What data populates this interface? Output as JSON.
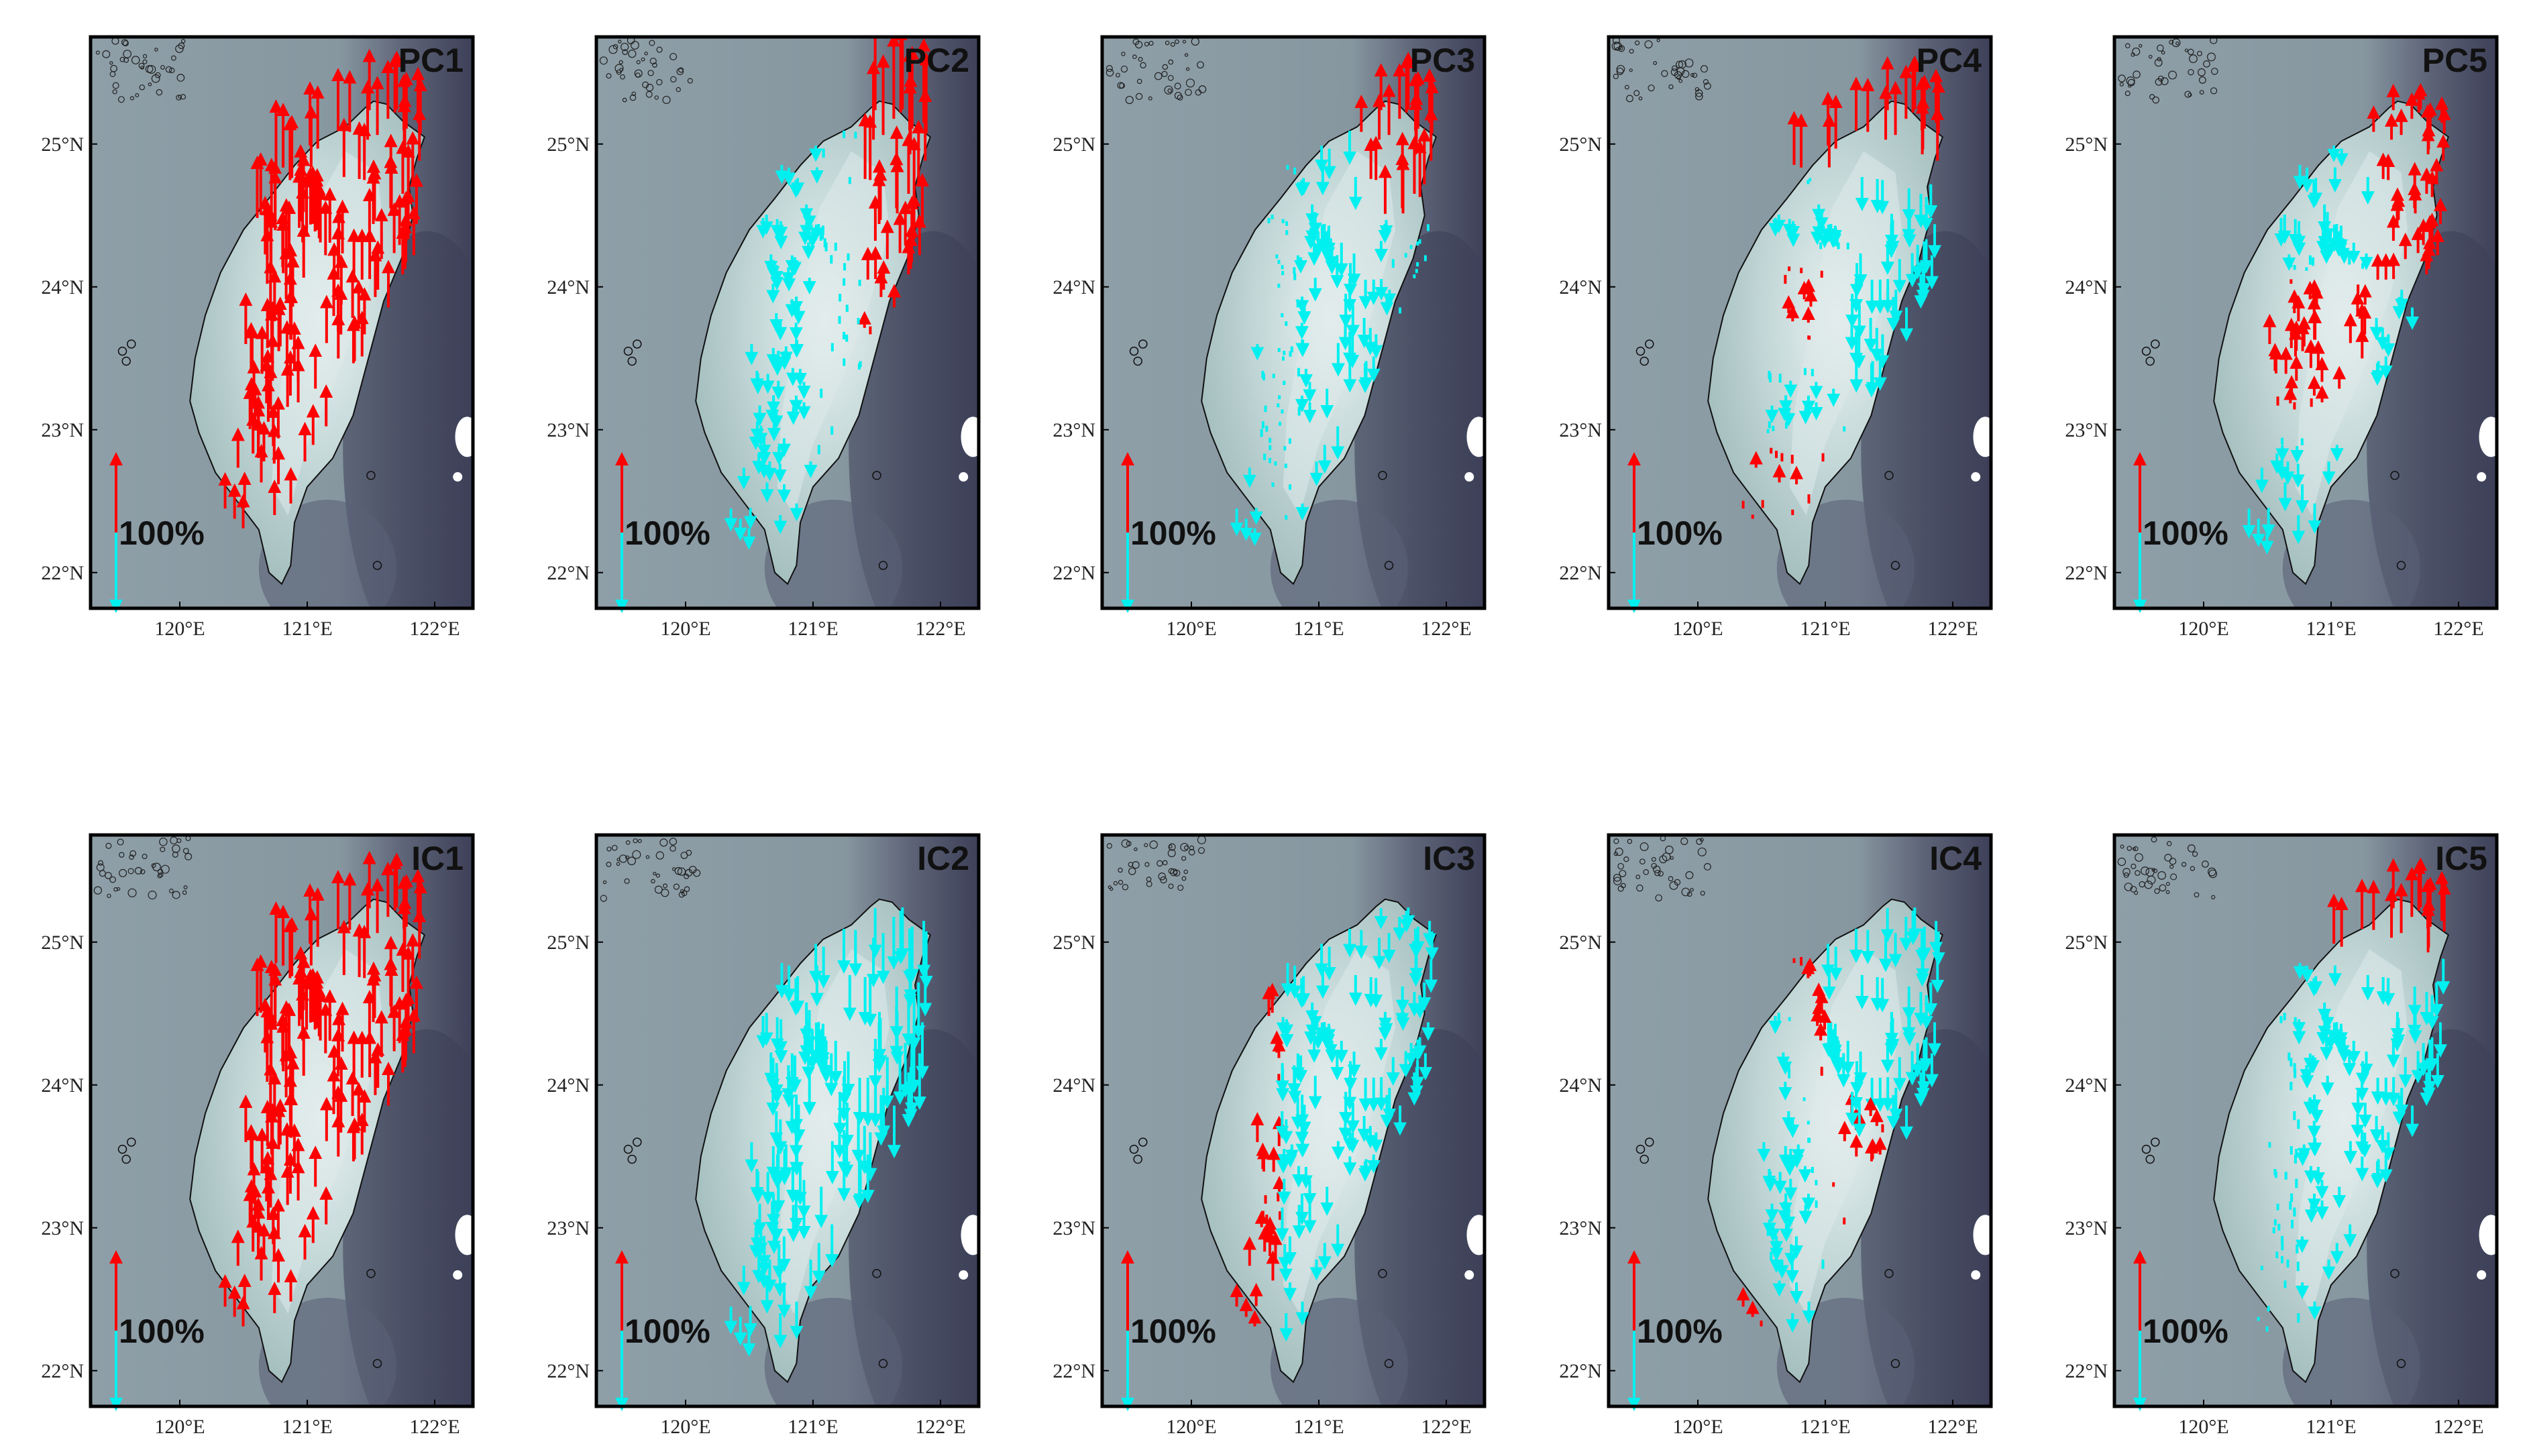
{
  "figure": {
    "panels": [
      {
        "title": "PC1"
      },
      {
        "title": "PC2"
      },
      {
        "title": "PC3"
      },
      {
        "title": "PC4"
      },
      {
        "title": "PC5"
      },
      {
        "title": "IC1"
      },
      {
        "title": "IC2"
      },
      {
        "title": "IC3"
      },
      {
        "title": "IC4"
      },
      {
        "title": "IC5"
      }
    ],
    "scale_label": "100%",
    "x_ticks": [
      "120°E",
      "121°E",
      "122°E"
    ],
    "y_ticks": [
      "25°N",
      "24°N",
      "23°N",
      "22°N"
    ],
    "colors": {
      "positive": "#ff0000",
      "negative": "#00f0f0",
      "sea": "#8a9ba5",
      "deep_sea": "#3d4058",
      "land_low": "#a8c2c2",
      "land_high": "#dfe9ea",
      "frame": "#000000"
    }
  }
}
